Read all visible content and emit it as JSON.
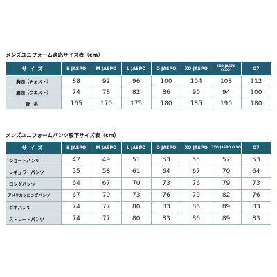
{
  "top_table": {
    "caption": "メンズユニフォーム適応サイズ表（cm）",
    "corner_label": "サイズ",
    "sizes": [
      "S JASPO",
      "M JASPO",
      "L JASPO",
      "O JASPO",
      "XO JASPO",
      "2XO JASPO (XXO)",
      "O7"
    ],
    "rows": [
      {
        "label": "胸囲（チェスト）",
        "values": [
          "88",
          "92",
          "96",
          "100",
          "104",
          "108",
          "112"
        ]
      },
      {
        "label": "胴囲（ウエスト）",
        "values": [
          "74",
          "78",
          "82",
          "86",
          "90",
          "94",
          "100"
        ]
      },
      {
        "label": "身長",
        "values": [
          "165",
          "170",
          "175",
          "180",
          "185",
          "190",
          "180"
        ]
      }
    ]
  },
  "bottom_table": {
    "caption": "メンズユニフォームパンツ股下サイズ表（cm）",
    "corner_label": "サイズ",
    "sizes": [
      "S JASPO",
      "M JASPO",
      "L JASPO",
      "O JASPO",
      "XO JASPO",
      "2XO JASPO (XXO)",
      "O7"
    ],
    "rows": [
      {
        "label": "ショートパンツ",
        "values": [
          "47",
          "49",
          "51",
          "53",
          "55",
          "57",
          "53"
        ]
      },
      {
        "label": "レギュラーパンツ",
        "values": [
          "55",
          "58",
          "61",
          "64",
          "67",
          "70",
          "64"
        ]
      },
      {
        "label": "ロングパンツ",
        "values": [
          "64",
          "67",
          "70",
          "73",
          "76",
          "79",
          "73"
        ]
      },
      {
        "label": "アメリカンロングパンツ",
        "values": [
          "67",
          "70",
          "73",
          "76",
          "79",
          "82",
          "76"
        ]
      },
      {
        "label": "ダボパンツ",
        "values": [
          "74",
          "77",
          "80",
          "83",
          "86",
          "89",
          "83"
        ]
      },
      {
        "label": "ストレートパンツ",
        "values": [
          "74",
          "77",
          "80",
          "83",
          "86",
          "89",
          "83"
        ]
      }
    ]
  }
}
